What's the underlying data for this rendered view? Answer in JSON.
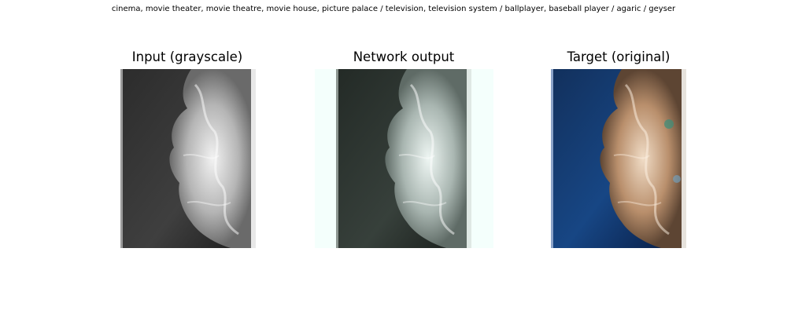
{
  "suptitle": "cinema, movie theater, movie theatre, movie house, picture palace / television, television system / ballplayer, baseball player / agaric / geyser",
  "panels": [
    {
      "title": "Input (grayscale)",
      "image": "grayscale-underwater-coral-photo"
    },
    {
      "title": "Network output",
      "image": "colorized-output-underwater-coral-photo"
    },
    {
      "title": "Target (original)",
      "image": "original-color-underwater-coral-photo"
    }
  ],
  "colors": {
    "input_water": "#3a3a3a",
    "input_coral": "#cfcfcf",
    "output_water": "#2e3631",
    "output_coral": "#c8d2cf",
    "output_padding": "#f4fffc",
    "target_water": "#0d2d63",
    "target_coral": "#c09a78"
  }
}
